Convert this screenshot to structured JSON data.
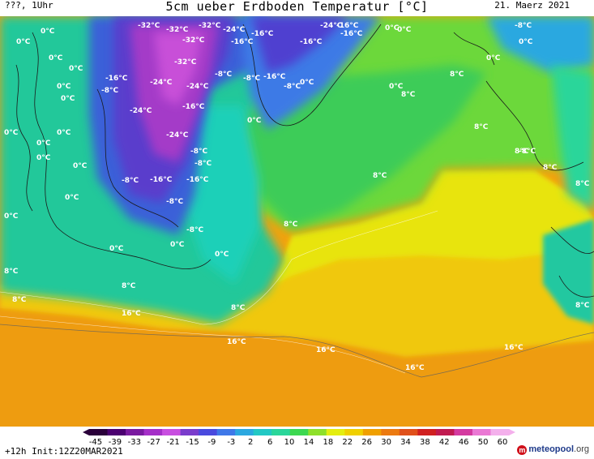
{
  "header": {
    "left": "???, 1Uhr",
    "title": "5cm ueber Erdboden Temperatur [°C]",
    "date": "21. Maerz 2021"
  },
  "footer": {
    "init": "+12h Init:12Z20MAR2021",
    "logo_main": "meteopool",
    "logo_tld": ".org"
  },
  "colorbar": {
    "ticks": [
      "-45",
      "-39",
      "-33",
      "-27",
      "-21",
      "-15",
      "-9",
      "-3",
      "2",
      "6",
      "10",
      "14",
      "18",
      "22",
      "26",
      "30",
      "34",
      "38",
      "42",
      "46",
      "50",
      "60"
    ],
    "colors": [
      "#2a003a",
      "#4b0070",
      "#7a1aa0",
      "#a52fc8",
      "#c84fe0",
      "#7a3ccc",
      "#4a4ade",
      "#3f78e8",
      "#2ba8e0",
      "#22c8c4",
      "#2ad69a",
      "#3cd850",
      "#8ee02a",
      "#e4ee10",
      "#f0d000",
      "#f0a000",
      "#ec7a10",
      "#e0501a",
      "#d02020",
      "#c01a50",
      "#d43aa0",
      "#ea78d4",
      "#f4b0ec"
    ]
  },
  "map_labels": [
    {
      "text": "0°C"
    },
    {
      "text": "0°C"
    },
    {
      "text": "0°C"
    },
    {
      "text": "0°C"
    },
    {
      "text": "0°C"
    },
    {
      "text": "0°C"
    },
    {
      "text": "0°C"
    },
    {
      "text": "0°C"
    },
    {
      "text": "0°C"
    },
    {
      "text": "0°C"
    },
    {
      "text": "0°C"
    },
    {
      "text": "0°C"
    },
    {
      "text": "0°C"
    },
    {
      "text": "0°C"
    },
    {
      "text": "0°C"
    },
    {
      "text": "0°C"
    },
    {
      "text": "0°C"
    },
    {
      "text": "0°C"
    },
    {
      "text": "0°C"
    },
    {
      "text": "0°C"
    },
    {
      "text": "0°C"
    },
    {
      "text": "0°C"
    },
    {
      "text": "0°C"
    },
    {
      "text": "-32°C"
    },
    {
      "text": "-32°C"
    },
    {
      "text": "-32°C"
    },
    {
      "text": "-32°C"
    },
    {
      "text": "-32°C"
    },
    {
      "text": "-24°C"
    },
    {
      "text": "-24°C"
    },
    {
      "text": "-24°C"
    },
    {
      "text": "-24°C"
    },
    {
      "text": "-24°C"
    },
    {
      "text": "-24°C"
    },
    {
      "text": "-16°C"
    },
    {
      "text": "-16°C"
    },
    {
      "text": "-16°C"
    },
    {
      "text": "-16°C"
    },
    {
      "text": "-16°C"
    },
    {
      "text": "-16°C"
    },
    {
      "text": "-16°C"
    },
    {
      "text": "-16°C"
    },
    {
      "text": "-16°C"
    },
    {
      "text": "-16°C"
    },
    {
      "text": "-8°C"
    },
    {
      "text": "-8°C"
    },
    {
      "text": "-8°C"
    },
    {
      "text": "-8°C"
    },
    {
      "text": "-8°C"
    },
    {
      "text": "-8°C"
    },
    {
      "text": "-8°C"
    },
    {
      "text": "-8°C"
    },
    {
      "text": "-8°C"
    },
    {
      "text": "-8°C"
    },
    {
      "text": "-8°C"
    },
    {
      "text": "8°C"
    },
    {
      "text": "8°C"
    },
    {
      "text": "8°C"
    },
    {
      "text": "8°C"
    },
    {
      "text": "8°C"
    },
    {
      "text": "8°C"
    },
    {
      "text": "8°C"
    },
    {
      "text": "8°C"
    },
    {
      "text": "8°C"
    },
    {
      "text": "8°C"
    },
    {
      "text": "8°C"
    },
    {
      "text": "8°C"
    },
    {
      "text": "8°C"
    },
    {
      "text": "16°C"
    },
    {
      "text": "16°C"
    },
    {
      "text": "16°C"
    },
    {
      "text": "16°C"
    },
    {
      "text": "16°C"
    },
    {
      "text": "16°C"
    }
  ]
}
